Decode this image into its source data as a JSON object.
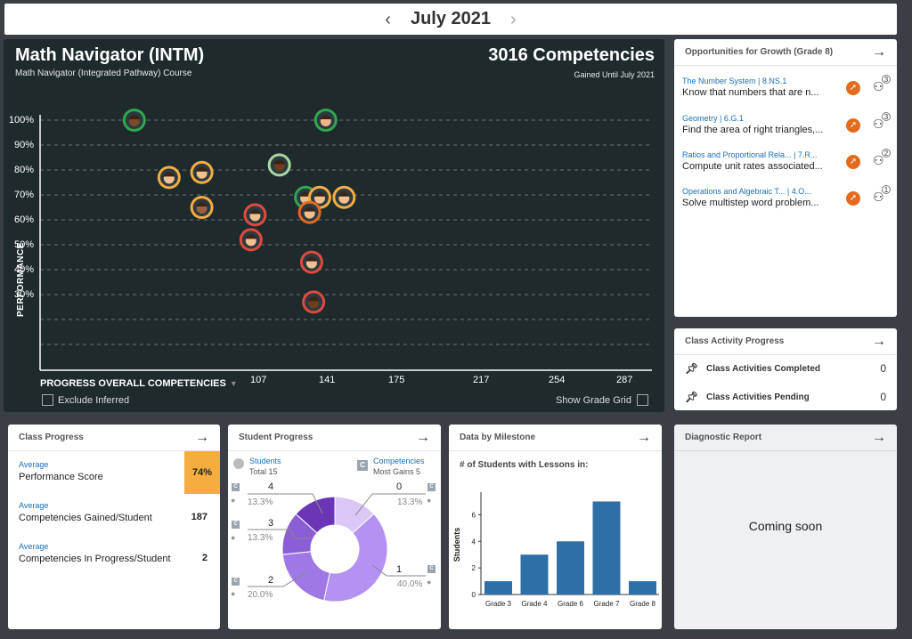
{
  "month_nav": {
    "prev": "‹",
    "label": "July 2021",
    "next": "›"
  },
  "main": {
    "title": "Math Navigator (INTM)",
    "subtitle": "Math Navigator (Integrated Pathway) Course",
    "competencies_title": "3016 Competencies",
    "competencies_sub": "Gained Until July 2021",
    "y_axis_label": "PERFORMANCE",
    "y_ticks": [
      "100%",
      "90%",
      "80%",
      "70%",
      "60%",
      "50%",
      "40%",
      "30%"
    ],
    "x_axis_label": "PROGRESS OVERALL COMPETENCIES",
    "x_ticks": [
      "107",
      "141",
      "175",
      "217",
      "254",
      "287"
    ],
    "exclude_inferred": "Exclude Inferred",
    "show_grade_grid": "Show Grade Grid"
  },
  "chart_data": {
    "type": "scatter",
    "xlabel": "PROGRESS OVERALL COMPETENCIES",
    "ylabel": "PERFORMANCE",
    "x_ticks": [
      107,
      141,
      175,
      217,
      254,
      287
    ],
    "y_ticks": [
      100,
      90,
      80,
      70,
      60,
      50,
      40,
      30
    ],
    "points": [
      {
        "x": 46,
        "y": 100,
        "ring": "#2fa84f",
        "face": "#7a4a2a"
      },
      {
        "x": 140,
        "y": 100,
        "ring": "#2fa84f",
        "face": "#f0b48a"
      },
      {
        "x": 79,
        "y": 79,
        "ring": "#f5ad3f",
        "face": "#f0c090"
      },
      {
        "x": 63,
        "y": 77,
        "ring": "#f5ad3f",
        "face": "#f0c090"
      },
      {
        "x": 117,
        "y": 82,
        "ring": "#a7d8a2",
        "face": "#6b3f1d"
      },
      {
        "x": 130,
        "y": 69,
        "ring": "#2fa84f",
        "face": "#f0c090"
      },
      {
        "x": 137,
        "y": 69,
        "ring": "#f5ad3f",
        "face": "#f0c090"
      },
      {
        "x": 149,
        "y": 69,
        "ring": "#f5ad3f",
        "face": "#f0c090"
      },
      {
        "x": 79,
        "y": 65,
        "ring": "#f5ad3f",
        "face": "#9a6040"
      },
      {
        "x": 105,
        "y": 62,
        "ring": "#e0493d",
        "face": "#f0c090"
      },
      {
        "x": 132,
        "y": 63,
        "ring": "#e36b1e",
        "face": "#f0c090"
      },
      {
        "x": 103,
        "y": 52,
        "ring": "#e0493d",
        "face": "#f0c090"
      },
      {
        "x": 133,
        "y": 43,
        "ring": "#e0493d",
        "face": "#f0c090"
      },
      {
        "x": 134,
        "y": 27,
        "ring": "#e0493d",
        "face": "#6b3f1d"
      }
    ]
  },
  "opportunities": {
    "title": "Opportunities for Growth (Grade 8)",
    "arrow": "→",
    "items": [
      {
        "tag": "The Number System  |  8.NS.1",
        "text": "Know that numbers that are n...",
        "count": "3"
      },
      {
        "tag": "Geometry  |  6.G.1",
        "text": "Find the area of right triangles,...",
        "count": "3"
      },
      {
        "tag": "Ratios and Proportional Rela...  |  7.R...",
        "text": "Compute unit rates associated...",
        "count": "2"
      },
      {
        "tag": "Operations and Algebraic T...  |  4.O...",
        "text": "Solve multistep word problem...",
        "count": "1"
      }
    ]
  },
  "class_activity": {
    "title": "Class Activity Progress",
    "arrow": "→",
    "rows": [
      {
        "label": "Class Activities Completed",
        "value": "0"
      },
      {
        "label": "Class Activities Pending",
        "value": "0"
      }
    ]
  },
  "class_progress": {
    "title": "Class Progress",
    "arrow": "→",
    "items": [
      {
        "avg": "Average",
        "label": "Performance Score",
        "value": "74%"
      },
      {
        "avg": "Average",
        "label": "Competencies Gained/Student",
        "value": "187"
      },
      {
        "avg": "Average",
        "label": "Competencies In Progress/Student",
        "value": "2"
      }
    ]
  },
  "student_progress": {
    "title": "Student Progress",
    "arrow": "→",
    "students_label": "Students",
    "students_total": "Total 15",
    "competencies_label": "Competencies",
    "competencies_sub": "Most Gains 5",
    "c_badge": "C",
    "segments": [
      {
        "count": "4",
        "pct": "13.3%"
      },
      {
        "count": "3",
        "pct": "13.3%"
      },
      {
        "count": "2",
        "pct": "20.0%"
      },
      {
        "count": "0",
        "pct": "13.3%"
      },
      {
        "count": "1",
        "pct": "40.0%"
      }
    ]
  },
  "milestone": {
    "title": "Data by Milestone",
    "arrow": "→",
    "subtitle": "# of Students with Lessons in:"
  },
  "milestone_chart": {
    "type": "bar",
    "ylabel": "Students",
    "categories": [
      "Grade 3",
      "Grade 4",
      "Grade 6",
      "Grade 7",
      "Grade 8"
    ],
    "values": [
      1,
      3,
      4,
      7,
      1
    ],
    "yticks": [
      "0",
      "2",
      "4",
      "6"
    ],
    "color": "#2f6fa8"
  },
  "diagnostic": {
    "title": "Diagnostic Report",
    "arrow": "→",
    "message": "Coming soon"
  }
}
